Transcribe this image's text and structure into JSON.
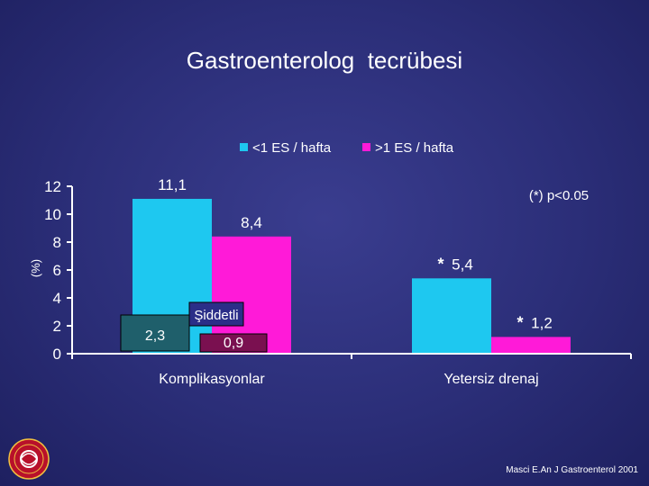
{
  "slide": {
    "title": "Gastroenterolog  tecrübesi",
    "citation": "Masci E.An J Gastroenterol 2001"
  },
  "chart_data": {
    "type": "bar",
    "title": "",
    "ylabel": "(%)",
    "xlabel": "",
    "ylim": [
      0,
      12
    ],
    "yticks": [
      0,
      2,
      4,
      6,
      8,
      10,
      12
    ],
    "categories": [
      "Komplikasyonlar",
      "Yetersiz drenaj"
    ],
    "series": [
      {
        "name": "<1 ES / hafta",
        "color": "#1ec8f0",
        "values": [
          11.1,
          5.4
        ],
        "labels": [
          "11,1",
          "5,4"
        ]
      },
      {
        "name": ">1 ES / hafta",
        "color": "#ff1ad8",
        "values": [
          8.4,
          1.2
        ],
        "labels": [
          "8,4",
          "1,2"
        ]
      }
    ],
    "legend": "top",
    "significance_note": "(*) p<0.05",
    "significance_marks": [
      {
        "text": "*",
        "category": 1,
        "series": 0
      },
      {
        "text": "*",
        "category": 1,
        "series": 1
      }
    ],
    "inset_label": "Şiddetli",
    "inset_bars": [
      {
        "series": 0,
        "value": 2.3,
        "label": "2,3",
        "color": "#1f5f6b"
      },
      {
        "series": 1,
        "value": 0.9,
        "label": "0,9",
        "color": "#7a1050"
      }
    ]
  }
}
